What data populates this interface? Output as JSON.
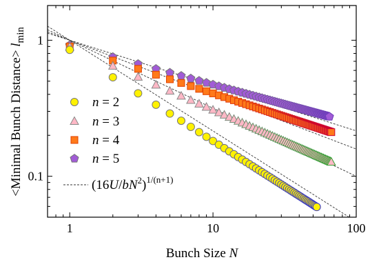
{
  "chart_data": {
    "type": "scatter",
    "xscale": "log",
    "yscale": "log",
    "xlim": [
      0.7,
      100
    ],
    "ylim": [
      0.05,
      1.8
    ],
    "grid": false,
    "legend_position": "left",
    "xlabel": {
      "main": "Bunch Size ",
      "italic": "N"
    },
    "ylabel": {
      "main": "<Minimal Bunch Distance> ",
      "italic": "l",
      "sub": "min"
    },
    "x_ticks": [
      {
        "value": 1,
        "label": "1"
      },
      {
        "value": 10,
        "label": "10"
      },
      {
        "value": 100,
        "label": "100"
      }
    ],
    "y_ticks": [
      {
        "value": 0.1,
        "label": "0.1"
      },
      {
        "value": 1,
        "label": "1"
      }
    ],
    "series": [
      {
        "n": 2,
        "marker": "circle",
        "fill": "#fff200",
        "stroke": "#777777",
        "stroke_end": "#3333cc",
        "y1": 0.85,
        "slope": -0.67,
        "xmax": 53
      },
      {
        "n": 3,
        "marker": "triangle",
        "fill": "#ffb8c6",
        "stroke": "#888888",
        "stroke_end": "#2e9e2e",
        "y1": 0.89,
        "slope": -0.463,
        "xmax": 67
      },
      {
        "n": 4,
        "marker": "square",
        "fill": "#ff7a1a",
        "stroke": "#e04000",
        "stroke_end": "#cc0033",
        "y1": 0.9,
        "slope": -0.345,
        "xmax": 67
      },
      {
        "n": 5,
        "marker": "pentagon",
        "fill": "#a15bd6",
        "stroke": "#777777",
        "stroke_end": "#6a3ab8",
        "y1": 0.92,
        "slope": -0.29,
        "xmax": 65
      }
    ],
    "fit_lines": [
      {
        "n": 2,
        "y1": 1.0,
        "slope": -0.667
      },
      {
        "n": 3,
        "y1": 1.0,
        "slope": -0.5
      },
      {
        "n": 4,
        "y1": 1.0,
        "slope": -0.4
      },
      {
        "n": 5,
        "y1": 1.0,
        "slope": -0.333
      }
    ],
    "legend": [
      {
        "label_italic": "n",
        "label_rest": " = 2",
        "marker": "circle",
        "fill": "#fff200",
        "stroke": "#777777"
      },
      {
        "label_italic": "n",
        "label_rest": " = 3",
        "marker": "triangle",
        "fill": "#ffb8c6",
        "stroke": "#888888"
      },
      {
        "label_italic": "n",
        "label_rest": " = 4",
        "marker": "square",
        "fill": "#ff7a1a",
        "stroke": "#e04000"
      },
      {
        "label_italic": "n",
        "label_rest": " = 5",
        "marker": "pentagon",
        "fill": "#a15bd6",
        "stroke": "#777777"
      }
    ],
    "fit_legend": {
      "pre": "(16",
      "U": "U",
      "slash": "/",
      "b": "b",
      "N": "N",
      "sup2": "2",
      "close": ")",
      "exp": "1/(n+1)"
    }
  }
}
